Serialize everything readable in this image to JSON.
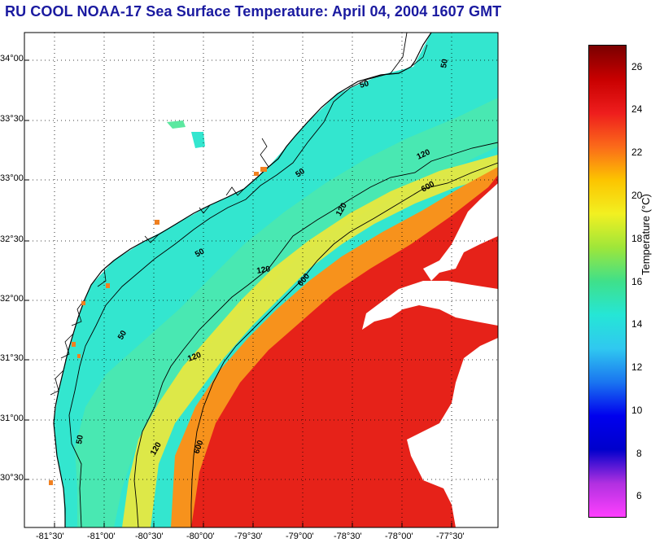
{
  "title": "RU COOL  NOAA-17  Sea Surface Temperature:  April 04, 2004 1607 GMT",
  "map": {
    "lat_labels": [
      "34°00'",
      "33°30'",
      "33°00'",
      "32°30'",
      "32°00'",
      "31°30'",
      "31°00'",
      "30°30'"
    ],
    "lon_labels": [
      "-81°30'",
      "-81°00'",
      "-80°30'",
      "-80°00'",
      "-79°30'",
      "-79°00'",
      "-78°30'",
      "-78°00'",
      "-77°30'"
    ],
    "isobath_labels": [
      "50",
      "50",
      "50",
      "50",
      "50",
      "50",
      "120",
      "120",
      "120",
      "120",
      "120",
      "600",
      "600",
      "600"
    ],
    "colors": {
      "land": "#ffffff",
      "cloud": "#ffffff",
      "coast": "#000000",
      "grid": "#000000"
    }
  },
  "colorbar": {
    "title": "Temperature (°C)",
    "ticks": [
      "26",
      "24",
      "22",
      "20",
      "18",
      "16",
      "14",
      "12",
      "10",
      "8",
      "6"
    ],
    "range": [
      5,
      27
    ],
    "gradient_stops": [
      "#7a0000",
      "#c80000",
      "#ee1d1d",
      "#fb6a1a",
      "#fcc500",
      "#f2f021",
      "#9ee63a",
      "#3fe08a",
      "#25e6d6",
      "#30c8f0",
      "#1a75f0",
      "#0000ee",
      "#0000cc",
      "#b030e0",
      "#ff40ff"
    ]
  }
}
